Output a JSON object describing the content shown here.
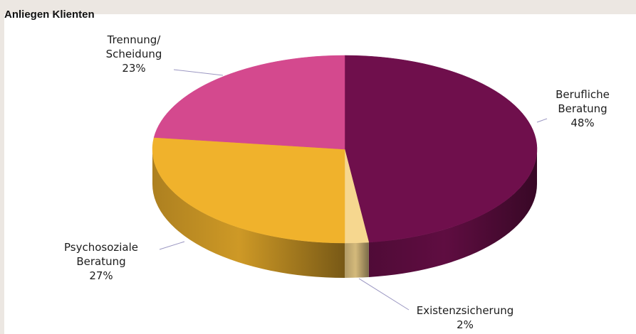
{
  "page": {
    "header": "Anliegen Klienten"
  },
  "chart_data": {
    "type": "pie",
    "title": "",
    "three_d": true,
    "legend": "none",
    "categories": [
      "Berufliche Beratung",
      "Existenzsicherung",
      "Psychosoziale Beratung",
      "Trennung/ Scheidung"
    ],
    "values": [
      48,
      2,
      27,
      23
    ],
    "colors": [
      "#6f0f4c",
      "#f6d78f",
      "#f0b22c",
      "#d4498e"
    ],
    "labels": [
      {
        "lines": [
          "Berufliche",
          "Beratung"
        ],
        "pct": "48%"
      },
      {
        "lines": [
          "Existenzsicherung"
        ],
        "pct": "2%"
      },
      {
        "lines": [
          "Psychosoziale",
          "Beratung"
        ],
        "pct": "27%"
      },
      {
        "lines": [
          "Trennung/",
          "Scheidung"
        ],
        "pct": "23%"
      }
    ]
  }
}
